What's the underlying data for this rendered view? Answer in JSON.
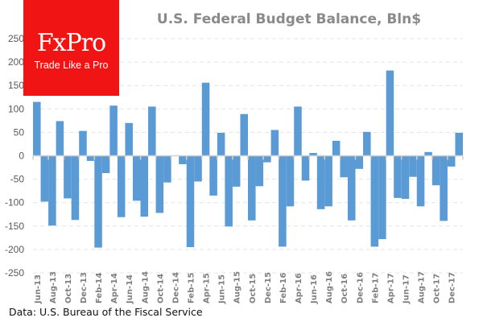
{
  "brand": {
    "name": "FxPro",
    "tagline": "Trade Like a Pro",
    "color": "#f01414"
  },
  "source_note": "Data: U.S. Bureau of the Fiscal Service",
  "chart_data": {
    "type": "bar",
    "title": "U.S. Federal Budget Balance, Bln$",
    "xlabel": "",
    "ylabel": "",
    "ylim": [
      -250,
      250
    ],
    "yticks": [
      250,
      200,
      150,
      100,
      50,
      0,
      -50,
      -100,
      -150,
      -200,
      -250
    ],
    "grid": true,
    "legend": "none",
    "bar_color": "#5b9bd5",
    "categories": [
      "Jun-13",
      "Jul-13",
      "Aug-13",
      "Sep-13",
      "Oct-13",
      "Nov-13",
      "Dec-13",
      "Jan-14",
      "Feb-14",
      "Mar-14",
      "Apr-14",
      "May-14",
      "Jun-14",
      "Jul-14",
      "Aug-14",
      "Sep-14",
      "Oct-14",
      "Nov-14",
      "Dec-14",
      "Jan-15",
      "Feb-15",
      "Mar-15",
      "Apr-15",
      "May-15",
      "Jun-15",
      "Jul-15",
      "Aug-15",
      "Sep-15",
      "Oct-15",
      "Nov-15",
      "Dec-15",
      "Jan-16",
      "Feb-16",
      "Mar-16",
      "Apr-16",
      "May-16",
      "Jun-16",
      "Jul-16",
      "Aug-16",
      "Sep-16",
      "Oct-16",
      "Nov-16",
      "Dec-16",
      "Jan-17",
      "Feb-17",
      "Mar-17",
      "Apr-17",
      "May-17",
      "Jun-17",
      "Jul-17",
      "Aug-17",
      "Sep-17",
      "Oct-17",
      "Nov-17",
      "Dec-17",
      "Jan-18"
    ],
    "tick_labels": [
      "Jun-13",
      "Aug-13",
      "Oct-13",
      "Dec-13",
      "Feb-14",
      "Apr-14",
      "Jun-14",
      "Aug-14",
      "Oct-14",
      "Dec-14",
      "Feb-15",
      "Apr-15",
      "Jun-15",
      "Aug-15",
      "Oct-15",
      "Dec-15",
      "Feb-16",
      "Apr-16",
      "Jun-16",
      "Aug-16",
      "Oct-16",
      "Dec-16",
      "Feb-17",
      "Apr-17",
      "Jun-17",
      "Aug-17",
      "Oct-17",
      "Dec-17"
    ],
    "values": [
      115,
      -98,
      -149,
      74,
      -91,
      -137,
      53,
      -11,
      -196,
      -37,
      107,
      -131,
      70,
      -96,
      -130,
      105,
      -122,
      -57,
      0,
      -18,
      -195,
      -55,
      156,
      -85,
      49,
      -151,
      -66,
      89,
      -138,
      -65,
      -14,
      55,
      -194,
      -108,
      105,
      -53,
      6,
      -114,
      -108,
      32,
      -46,
      -138,
      -28,
      51,
      -194,
      -178,
      182,
      -90,
      -92,
      -45,
      -108,
      8,
      -63,
      -139,
      -23,
      49
    ]
  }
}
